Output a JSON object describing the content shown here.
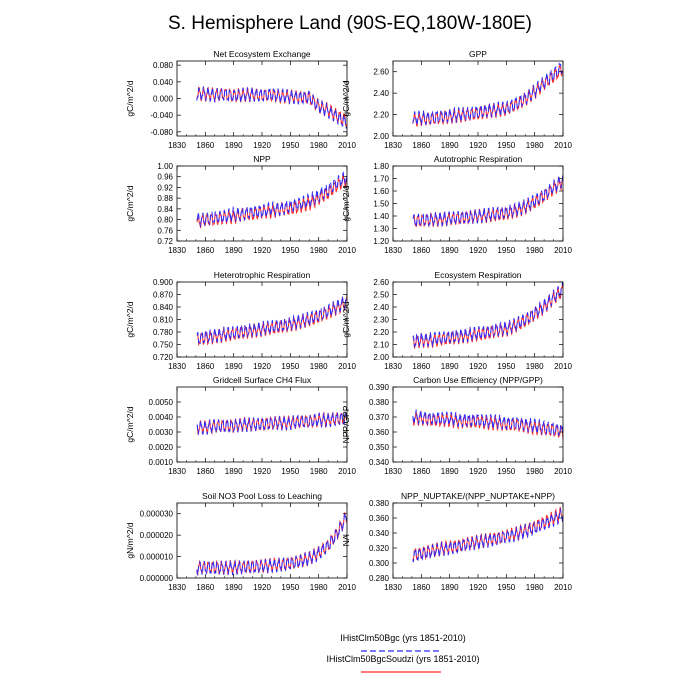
{
  "title": "S. Hemisphere Land (90S-EQ,180W-180E)",
  "legend": [
    {
      "name": "IHistClm50Bgc (yrs 1851-2010)",
      "color": "#2b2bff",
      "dash": "6,3"
    },
    {
      "name": "IHistClm50BgcSoudzi (yrs 1851-2010)",
      "color": "#ff2a2a",
      "dash": ""
    }
  ],
  "chart_data": [
    {
      "type": "line",
      "title": "Net Ecosystem Exchange",
      "ylabel": "gC/m^2/d",
      "xlim": [
        1830,
        2010
      ],
      "ylim": [
        -0.09,
        0.09
      ],
      "xticks": [
        1830,
        1860,
        1890,
        1920,
        1950,
        1980,
        2010
      ],
      "yticks": [
        -0.08,
        -0.04,
        0.0,
        0.04,
        0.08
      ],
      "ytick_labels": [
        "-0.080",
        "-0.040",
        "0.000",
        "0.040",
        "0.080"
      ],
      "x": [
        1851,
        1860,
        1870,
        1880,
        1890,
        1900,
        1910,
        1920,
        1930,
        1940,
        1950,
        1960,
        1970,
        1980,
        1990,
        2000,
        2010
      ],
      "series": [
        {
          "name": "IHistClm50Bgc (yrs 1851-2010)",
          "values": [
            0.01,
            0.012,
            0.008,
            0.01,
            0.006,
            0.008,
            0.01,
            0.008,
            0.01,
            0.006,
            0.004,
            0.002,
            0.004,
            -0.02,
            -0.03,
            -0.045,
            -0.06
          ]
        },
        {
          "name": "IHistClm50BgcSoudzi (yrs 1851-2010)",
          "values": [
            0.012,
            0.01,
            0.009,
            0.011,
            0.007,
            0.009,
            0.009,
            0.007,
            0.009,
            0.005,
            0.005,
            0.003,
            0.002,
            -0.018,
            -0.028,
            -0.042,
            -0.055
          ]
        }
      ]
    },
    {
      "type": "line",
      "title": "GPP",
      "ylabel": "gC/m^2/d",
      "xlim": [
        1830,
        2010
      ],
      "ylim": [
        2.0,
        2.7
      ],
      "xticks": [
        1830,
        1860,
        1890,
        1920,
        1950,
        1980,
        2010
      ],
      "yticks": [
        2.0,
        2.2,
        2.4,
        2.6
      ],
      "ytick_labels": [
        "2.00",
        "2.20",
        "2.40",
        "2.60"
      ],
      "x": [
        1851,
        1860,
        1870,
        1880,
        1890,
        1900,
        1910,
        1920,
        1930,
        1940,
        1950,
        1960,
        1970,
        1980,
        1990,
        2000,
        2010
      ],
      "series": [
        {
          "name": "IHistClm50Bgc (yrs 1851-2010)",
          "values": [
            2.16,
            2.17,
            2.17,
            2.18,
            2.19,
            2.2,
            2.21,
            2.22,
            2.24,
            2.25,
            2.26,
            2.3,
            2.35,
            2.42,
            2.5,
            2.58,
            2.65
          ]
        },
        {
          "name": "IHistClm50BgcSoudzi (yrs 1851-2010)",
          "values": [
            2.15,
            2.16,
            2.16,
            2.17,
            2.18,
            2.19,
            2.2,
            2.21,
            2.23,
            2.24,
            2.25,
            2.29,
            2.34,
            2.41,
            2.49,
            2.56,
            2.63
          ]
        }
      ]
    },
    {
      "type": "line",
      "title": "NPP",
      "ylabel": "gC/m^2/d",
      "xlim": [
        1830,
        2010
      ],
      "ylim": [
        0.72,
        1.0
      ],
      "xticks": [
        1830,
        1860,
        1890,
        1920,
        1950,
        1980,
        2010
      ],
      "yticks": [
        0.72,
        0.76,
        0.8,
        0.84,
        0.88,
        0.92,
        0.96,
        1.0
      ],
      "ytick_labels": [
        "0.72",
        "0.76",
        "0.80",
        "0.84",
        "0.88",
        "0.92",
        "0.96",
        "1.00"
      ],
      "x": [
        1851,
        1860,
        1870,
        1880,
        1890,
        1900,
        1910,
        1920,
        1930,
        1940,
        1950,
        1960,
        1970,
        1980,
        1990,
        2000,
        2010
      ],
      "series": [
        {
          "name": "IHistClm50Bgc (yrs 1851-2010)",
          "values": [
            0.8,
            0.8,
            0.81,
            0.81,
            0.82,
            0.82,
            0.83,
            0.83,
            0.84,
            0.84,
            0.85,
            0.86,
            0.87,
            0.89,
            0.91,
            0.94,
            0.96
          ]
        },
        {
          "name": "IHistClm50BgcSoudzi (yrs 1851-2010)",
          "values": [
            0.79,
            0.8,
            0.8,
            0.81,
            0.81,
            0.82,
            0.82,
            0.83,
            0.83,
            0.84,
            0.84,
            0.85,
            0.86,
            0.88,
            0.9,
            0.93,
            0.95
          ]
        }
      ]
    },
    {
      "type": "line",
      "title": "Autotrophic Respiration",
      "ylabel": "gC/m^2/d",
      "xlim": [
        1830,
        2010
      ],
      "ylim": [
        1.2,
        1.8
      ],
      "xticks": [
        1830,
        1860,
        1890,
        1920,
        1950,
        1980,
        2010
      ],
      "yticks": [
        1.2,
        1.3,
        1.4,
        1.5,
        1.6,
        1.7,
        1.8
      ],
      "ytick_labels": [
        "1.20",
        "1.30",
        "1.40",
        "1.50",
        "1.60",
        "1.70",
        "1.80"
      ],
      "x": [
        1851,
        1860,
        1870,
        1880,
        1890,
        1900,
        1910,
        1920,
        1930,
        1940,
        1950,
        1960,
        1970,
        1980,
        1990,
        2000,
        2010
      ],
      "series": [
        {
          "name": "IHistClm50Bgc (yrs 1851-2010)",
          "values": [
            1.36,
            1.37,
            1.37,
            1.38,
            1.38,
            1.39,
            1.39,
            1.4,
            1.41,
            1.42,
            1.43,
            1.45,
            1.48,
            1.52,
            1.57,
            1.63,
            1.69
          ]
        },
        {
          "name": "IHistClm50BgcSoudzi (yrs 1851-2010)",
          "values": [
            1.36,
            1.36,
            1.37,
            1.37,
            1.38,
            1.38,
            1.39,
            1.4,
            1.4,
            1.41,
            1.42,
            1.44,
            1.47,
            1.51,
            1.56,
            1.62,
            1.68
          ]
        }
      ]
    },
    {
      "type": "line",
      "title": "Heterotrophic Respiration",
      "ylabel": "gC/m^2/d",
      "xlim": [
        1830,
        2010
      ],
      "ylim": [
        0.72,
        0.9
      ],
      "xticks": [
        1830,
        1860,
        1890,
        1920,
        1950,
        1980,
        2010
      ],
      "yticks": [
        0.72,
        0.75,
        0.78,
        0.81,
        0.84,
        0.87,
        0.9
      ],
      "ytick_labels": [
        "0.720",
        "0.750",
        "0.780",
        "0.810",
        "0.840",
        "0.870",
        "0.900"
      ],
      "x": [
        1851,
        1860,
        1870,
        1880,
        1890,
        1900,
        1910,
        1920,
        1930,
        1940,
        1950,
        1960,
        1970,
        1980,
        1990,
        2000,
        2010
      ],
      "series": [
        {
          "name": "IHistClm50Bgc (yrs 1851-2010)",
          "values": [
            0.765,
            0.768,
            0.772,
            0.775,
            0.778,
            0.782,
            0.785,
            0.789,
            0.792,
            0.796,
            0.8,
            0.806,
            0.812,
            0.82,
            0.83,
            0.842,
            0.855
          ]
        },
        {
          "name": "IHistClm50BgcSoudzi (yrs 1851-2010)",
          "values": [
            0.762,
            0.765,
            0.769,
            0.772,
            0.775,
            0.779,
            0.782,
            0.786,
            0.789,
            0.793,
            0.797,
            0.803,
            0.809,
            0.817,
            0.827,
            0.839,
            0.851
          ]
        }
      ]
    },
    {
      "type": "line",
      "title": "Ecosystem Respiration",
      "ylabel": "gC/m^2/d",
      "xlim": [
        1830,
        2010
      ],
      "ylim": [
        2.0,
        2.6
      ],
      "xticks": [
        1830,
        1860,
        1890,
        1920,
        1950,
        1980,
        2010
      ],
      "yticks": [
        2.0,
        2.1,
        2.2,
        2.3,
        2.4,
        2.5,
        2.6
      ],
      "ytick_labels": [
        "2.00",
        "2.10",
        "2.20",
        "2.30",
        "2.40",
        "2.50",
        "2.60"
      ],
      "x": [
        1851,
        1860,
        1870,
        1880,
        1890,
        1900,
        1910,
        1920,
        1930,
        1940,
        1950,
        1960,
        1970,
        1980,
        1990,
        2000,
        2010
      ],
      "series": [
        {
          "name": "IHistClm50Bgc (yrs 1851-2010)",
          "values": [
            2.13,
            2.14,
            2.14,
            2.15,
            2.16,
            2.17,
            2.18,
            2.19,
            2.2,
            2.22,
            2.23,
            2.26,
            2.3,
            2.35,
            2.41,
            2.48,
            2.55
          ]
        },
        {
          "name": "IHistClm50BgcSoudzi (yrs 1851-2010)",
          "values": [
            2.12,
            2.13,
            2.13,
            2.14,
            2.15,
            2.16,
            2.17,
            2.18,
            2.19,
            2.21,
            2.22,
            2.25,
            2.29,
            2.34,
            2.4,
            2.47,
            2.53
          ]
        }
      ]
    },
    {
      "type": "line",
      "title": "Gridcell Surface CH4 Flux",
      "ylabel": "gC/m^2/d",
      "xlim": [
        1830,
        2010
      ],
      "ylim": [
        0.001,
        0.006
      ],
      "xticks": [
        1830,
        1860,
        1890,
        1920,
        1950,
        1980,
        2010
      ],
      "yticks": [
        0.001,
        0.002,
        0.003,
        0.004,
        0.005
      ],
      "ytick_labels": [
        "0.0010",
        "0.0020",
        "0.0030",
        "0.0040",
        "0.0050"
      ],
      "x": [
        1851,
        1860,
        1870,
        1880,
        1890,
        1900,
        1910,
        1920,
        1930,
        1940,
        1950,
        1960,
        1970,
        1980,
        1990,
        2000,
        2010
      ],
      "series": [
        {
          "name": "IHistClm50Bgc (yrs 1851-2010)",
          "values": [
            0.0033,
            0.0033,
            0.0034,
            0.0034,
            0.0034,
            0.0035,
            0.0035,
            0.0035,
            0.0036,
            0.0036,
            0.0036,
            0.0037,
            0.0037,
            0.0038,
            0.0038,
            0.0039,
            0.0039
          ]
        },
        {
          "name": "IHistClm50BgcSoudzi (yrs 1851-2010)",
          "values": [
            0.0033,
            0.0033,
            0.0034,
            0.0034,
            0.0034,
            0.0035,
            0.0035,
            0.0035,
            0.0036,
            0.0036,
            0.0036,
            0.0037,
            0.0037,
            0.0038,
            0.0038,
            0.0039,
            0.0039
          ]
        }
      ]
    },
    {
      "type": "line",
      "title": "Carbon Use Efficiency (NPP/GPP)",
      "ylabel": "NPP/GPP",
      "xlim": [
        1830,
        2010
      ],
      "ylim": [
        0.34,
        0.39
      ],
      "xticks": [
        1830,
        1860,
        1890,
        1920,
        1950,
        1980,
        2010
      ],
      "yticks": [
        0.34,
        0.35,
        0.36,
        0.37,
        0.38,
        0.39
      ],
      "ytick_labels": [
        "0.340",
        "0.350",
        "0.360",
        "0.370",
        "0.380",
        "0.390"
      ],
      "x": [
        1851,
        1860,
        1870,
        1880,
        1890,
        1900,
        1910,
        1920,
        1930,
        1940,
        1950,
        1960,
        1970,
        1980,
        1990,
        2000,
        2010
      ],
      "series": [
        {
          "name": "IHistClm50Bgc (yrs 1851-2010)",
          "values": [
            0.37,
            0.37,
            0.369,
            0.369,
            0.369,
            0.368,
            0.368,
            0.368,
            0.367,
            0.367,
            0.366,
            0.366,
            0.365,
            0.364,
            0.363,
            0.362,
            0.361
          ]
        },
        {
          "name": "IHistClm50BgcSoudzi (yrs 1851-2010)",
          "values": [
            0.369,
            0.369,
            0.368,
            0.368,
            0.368,
            0.367,
            0.367,
            0.367,
            0.366,
            0.366,
            0.365,
            0.365,
            0.364,
            0.363,
            0.362,
            0.361,
            0.36
          ]
        }
      ]
    },
    {
      "type": "line",
      "title": "Soil NO3 Pool Loss to Leaching",
      "ylabel": "gN/m^2/d",
      "xlim": [
        1830,
        2010
      ],
      "ylim": [
        0.0,
        3.5e-05
      ],
      "xticks": [
        1830,
        1860,
        1890,
        1920,
        1950,
        1980,
        2010
      ],
      "yticks": [
        0.0,
        1e-05,
        2e-05,
        3e-05
      ],
      "ytick_labels": [
        "0.000000",
        "0.000010",
        "0.000020",
        "0.000030"
      ],
      "x": [
        1851,
        1860,
        1870,
        1880,
        1890,
        1900,
        1910,
        1920,
        1930,
        1940,
        1950,
        1960,
        1970,
        1980,
        1990,
        2000,
        2010
      ],
      "series": [
        {
          "name": "IHistClm50Bgc (yrs 1851-2010)",
          "values": [
            4.5e-06,
            4.8e-06,
            4.8e-06,
            4.7e-06,
            4.8e-06,
            5e-06,
            5.2e-06,
            5.5e-06,
            5.8e-06,
            6.2e-06,
            6.8e-06,
            7.8e-06,
            9e-06,
            1.15e-05,
            1.5e-05,
            2.1e-05,
            2.9e-05
          ]
        },
        {
          "name": "IHistClm50BgcSoudzi (yrs 1851-2010)",
          "values": [
            4.8e-06,
            5e-06,
            4.9e-06,
            4.8e-06,
            4.9e-06,
            5.1e-06,
            5.3e-06,
            5.6e-06,
            5.9e-06,
            6.3e-06,
            6.9e-06,
            7.9e-06,
            9.2e-06,
            1.17e-05,
            1.52e-05,
            2.12e-05,
            2.92e-05
          ]
        }
      ]
    },
    {
      "type": "line",
      "title": "NPP_NUPTAKE/(NPP_NUPTAKE+NPP)",
      "ylabel": "NA",
      "xlim": [
        1830,
        2010
      ],
      "ylim": [
        0.28,
        0.38
      ],
      "xticks": [
        1830,
        1860,
        1890,
        1920,
        1950,
        1980,
        2010
      ],
      "yticks": [
        0.28,
        0.3,
        0.32,
        0.34,
        0.36,
        0.38
      ],
      "ytick_labels": [
        "0.280",
        "0.300",
        "0.320",
        "0.340",
        "0.360",
        "0.380"
      ],
      "x": [
        1851,
        1860,
        1870,
        1880,
        1890,
        1900,
        1910,
        1920,
        1930,
        1940,
        1950,
        1960,
        1970,
        1980,
        1990,
        2000,
        2010
      ],
      "series": [
        {
          "name": "IHistClm50Bgc (yrs 1851-2010)",
          "values": [
            0.31,
            0.312,
            0.315,
            0.318,
            0.32,
            0.322,
            0.325,
            0.327,
            0.33,
            0.332,
            0.335,
            0.338,
            0.342,
            0.346,
            0.352,
            0.358,
            0.365
          ]
        },
        {
          "name": "IHistClm50BgcSoudzi (yrs 1851-2010)",
          "values": [
            0.311,
            0.313,
            0.316,
            0.319,
            0.321,
            0.323,
            0.326,
            0.328,
            0.331,
            0.333,
            0.336,
            0.339,
            0.343,
            0.348,
            0.354,
            0.36,
            0.367
          ]
        }
      ]
    }
  ]
}
